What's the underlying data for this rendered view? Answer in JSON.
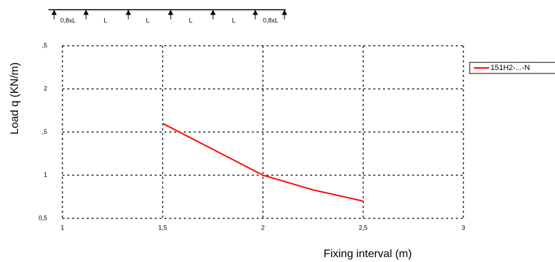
{
  "chart_data": {
    "type": "line",
    "beam_labels": [
      "0,8xL",
      "L",
      "L",
      "L",
      "L",
      "0,8xL"
    ],
    "x_label": "Fixing interval (m)",
    "y_label": "Load q (KN/m)",
    "x": [
      1.5,
      2,
      2.25,
      2.5
    ],
    "series": [
      {
        "name": "151H2-...-N",
        "color": "#ff0000",
        "values": [
          1.6,
          1.0,
          0.83,
          0.7
        ]
      }
    ],
    "xlim": [
      1,
      3
    ],
    "xticks": [
      1,
      {
        "value": 1.5,
        "label": "1,5"
      },
      2,
      {
        "value": 2.5,
        "label": "2,5"
      },
      3
    ],
    "ylim": [
      0.5,
      2.5
    ],
    "yticks": [
      {
        "value": 0.5,
        "label": "0,5"
      },
      1,
      {
        "value": 1.5,
        "label": ",5"
      },
      2,
      {
        "value": 2.5,
        "label": ",5"
      }
    ],
    "grid": true,
    "legend": "top-right"
  }
}
